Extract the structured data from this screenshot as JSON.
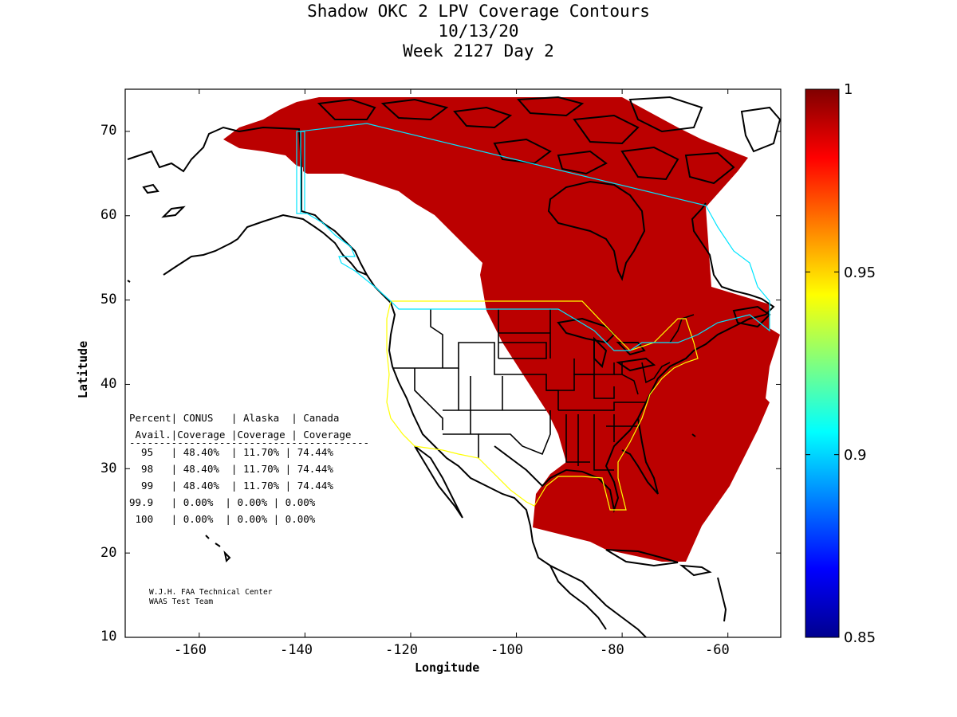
{
  "title": {
    "line1": "Shadow OKC 2 LPV Coverage Contours",
    "line2": "10/13/20",
    "line3": "Week 2127 Day 2"
  },
  "axes": {
    "xlabel": "Longitude",
    "ylabel": "Latitude",
    "x_ticks": [
      "-160",
      "-140",
      "-120",
      "-100",
      "-80",
      "-60"
    ],
    "y_ticks": [
      "70",
      "60",
      "50",
      "40",
      "30",
      "20",
      "10"
    ],
    "xlim": [
      -174,
      -50
    ],
    "ylim": [
      10,
      75
    ]
  },
  "colorbar": {
    "labels": [
      "1",
      "0.95",
      "0.9",
      "0.85"
    ],
    "range": [
      0.85,
      1
    ],
    "colormap": "jet"
  },
  "colors": {
    "coverage_fill": "#bb0000",
    "conus_boundary": "#ffff00",
    "alaska_canada_boundary": "#00e5ff",
    "coastline": "#000000"
  },
  "stats_table": {
    "header1": "Percent| CONUS   | Alaska  | Canada",
    "header2": " Avail.|Coverage |Coverage | Coverage",
    "divider": "----------------------------------------",
    "rows": [
      "  95   | 48.40%  | 11.70% | 74.44%",
      "  98   | 48.40%  | 11.70% | 74.44%",
      "  99   | 48.40%  | 11.70% | 74.44%",
      "99.9   | 0.00%  | 0.00% | 0.00%",
      " 100   | 0.00%  | 0.00% | 0.00%"
    ]
  },
  "credits": {
    "line1": "W.J.H. FAA Technical Center",
    "line2": "WAAS Test Team"
  },
  "chart_data": {
    "type": "heatmap",
    "title": "Shadow OKC 2 LPV Coverage Contours",
    "subtitle": [
      "10/13/20",
      "Week 2127 Day 2"
    ],
    "xlabel": "Longitude",
    "ylabel": "Latitude",
    "xlim": [
      -174,
      -50
    ],
    "ylim": [
      10,
      75
    ],
    "colorbar_range": [
      0.85,
      1
    ],
    "coverage_table": {
      "columns": [
        "Percent Avail.",
        "CONUS Coverage",
        "Alaska Coverage",
        "Canada Coverage"
      ],
      "rows": [
        [
          "95",
          "48.40%",
          "11.70%",
          "74.44%"
        ],
        [
          "98",
          "48.40%",
          "11.70%",
          "74.44%"
        ],
        [
          "99",
          "48.40%",
          "11.70%",
          "74.44%"
        ],
        [
          "99.9",
          "0.00%",
          "0.00%",
          "0.00%"
        ],
        [
          "100",
          "0.00%",
          "0.00%",
          "0.00%"
        ]
      ]
    }
  }
}
